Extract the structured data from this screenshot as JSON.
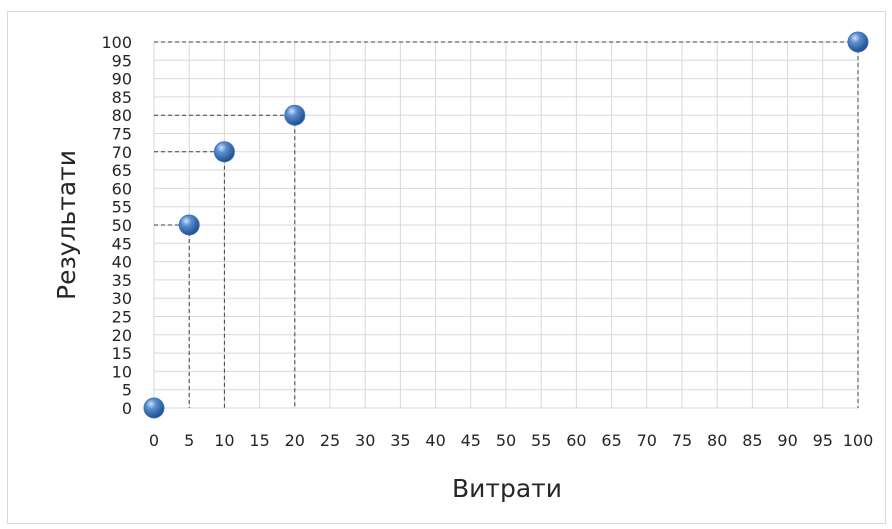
{
  "chart_data": {
    "type": "scatter",
    "xlabel": "Витрати",
    "ylabel": "Результати",
    "xlim": [
      0,
      100
    ],
    "ylim": [
      0,
      100
    ],
    "x_ticks": [
      0,
      5,
      10,
      15,
      20,
      25,
      30,
      35,
      40,
      45,
      50,
      55,
      60,
      65,
      70,
      75,
      80,
      85,
      90,
      95,
      100
    ],
    "y_ticks": [
      0,
      5,
      10,
      15,
      20,
      25,
      30,
      35,
      40,
      45,
      50,
      55,
      60,
      65,
      70,
      75,
      80,
      85,
      90,
      95,
      100
    ],
    "grid": true,
    "drop_lines": true,
    "marker_color": "#3e73b8",
    "series": [
      {
        "x": [
          0,
          5,
          10,
          20,
          100
        ],
        "y": [
          0,
          50,
          70,
          80,
          100
        ]
      }
    ]
  }
}
